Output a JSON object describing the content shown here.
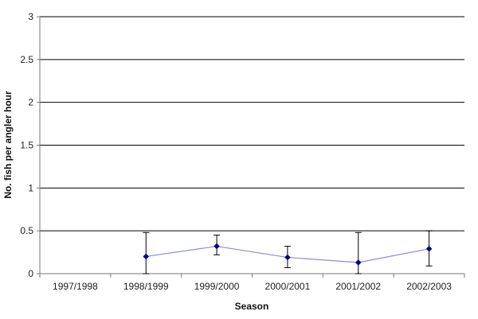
{
  "chart_data": {
    "type": "line",
    "title": "",
    "xlabel": "Season",
    "ylabel": "No. fish per angler hour",
    "categories": [
      "1997/1998",
      "1998/1999",
      "1999/2000",
      "2000/2001",
      "2001/2002",
      "2002/2003"
    ],
    "series": [
      {
        "values": [
          null,
          0.2,
          0.32,
          0.19,
          0.13,
          0.29
        ],
        "error_low": [
          null,
          0.0,
          0.22,
          0.07,
          0.0,
          0.09
        ],
        "error_high": [
          null,
          0.48,
          0.45,
          0.32,
          0.48,
          0.5
        ],
        "color": "#00008b",
        "line_color": "#8c8cd9"
      }
    ],
    "ylim": [
      0,
      3
    ],
    "yticks": [
      "0",
      "0.5",
      "1",
      "1.5",
      "2",
      "2.5",
      "3"
    ],
    "grid": true,
    "legend": "none"
  }
}
